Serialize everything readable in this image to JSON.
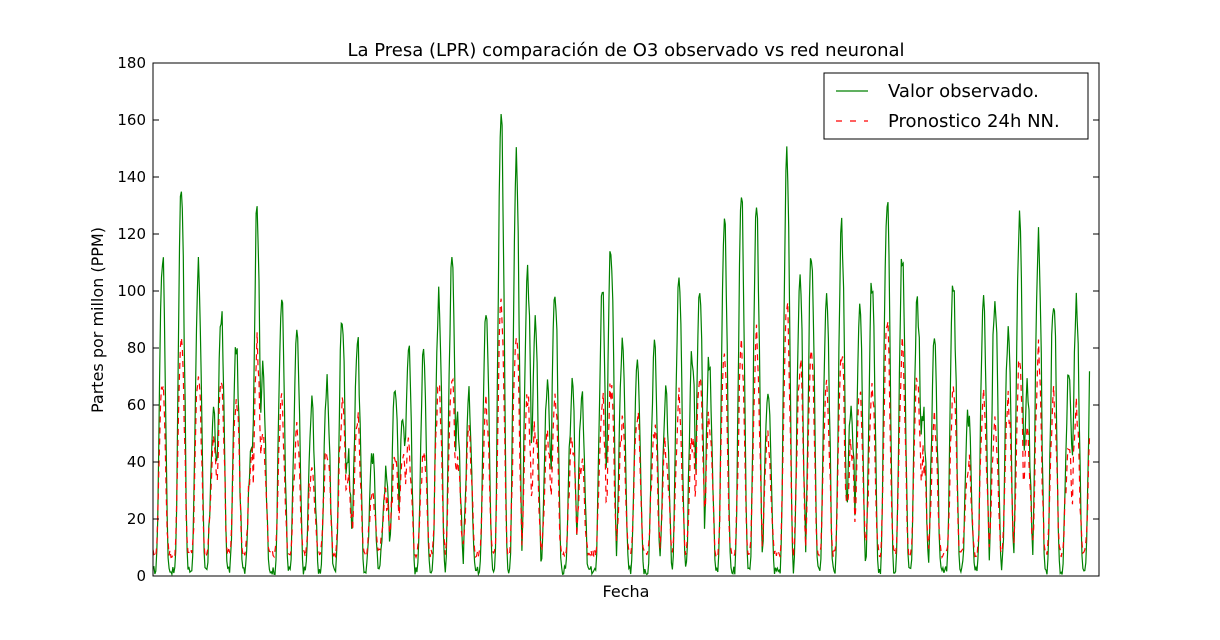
{
  "chart_data": {
    "type": "line",
    "title": "La Presa (LPR) comparación de O3 observado vs red neuronal",
    "xlabel": "Fecha",
    "ylabel": "Partes por millon (PPM)",
    "ylim": [
      0,
      180
    ],
    "yticks": [
      0,
      20,
      40,
      60,
      80,
      100,
      120,
      140,
      160,
      180
    ],
    "xlim": [
      0,
      1000
    ],
    "legend_position": "top-right",
    "grid": false,
    "colors": {
      "observed": "#008000",
      "forecast": "#ff0000"
    },
    "series": [
      {
        "name": "Valor observado.",
        "style": "solid",
        "peak_x": [
          10,
          30,
          48,
          64,
          72,
          88,
          104,
          110,
          116,
          136,
          152,
          168,
          184,
          200,
          206,
          216,
          232,
          246,
          256,
          264,
          270,
          286,
          302,
          316,
          322,
          334,
          352,
          368,
          384,
          396,
          404,
          417,
          425,
          443,
          453,
          475,
          484,
          496,
          512,
          530,
          542,
          556,
          570,
          578,
          588,
          604,
          622,
          638,
          650,
          670,
          684,
          696,
          712,
          728,
          738,
          747,
          760,
          776,
          792,
          808,
          814,
          826,
          846,
          862,
          878,
          890,
          904,
          916,
          924,
          936,
          952,
          968,
          976,
          992
        ],
        "peak_y": [
          113,
          139,
          110,
          58,
          93,
          81,
          48,
          129,
          71,
          97,
          84,
          60,
          66,
          93,
          42,
          83,
          41,
          35,
          67,
          55,
          81,
          77,
          97,
          109,
          53,
          62,
          96,
          163,
          146,
          107,
          88,
          70,
          101,
          65,
          63,
          102,
          115,
          81,
          79,
          80,
          66,
          103,
          79,
          100,
          76,
          125,
          134,
          128,
          68,
          147,
          101,
          115,
          101,
          122,
          60,
          92,
          104,
          134,
          112,
          97,
          58,
          80,
          103,
          57,
          95,
          99,
          83,
          126,
          67,
          119,
          98,
          70,
          95,
          84
        ]
      },
      {
        "name": "Pronostico 24h NN.",
        "style": "dashed",
        "peak_x": [
          10,
          30,
          48,
          64,
          72,
          88,
          104,
          110,
          116,
          136,
          152,
          168,
          184,
          200,
          206,
          216,
          232,
          246,
          256,
          264,
          270,
          286,
          302,
          316,
          322,
          334,
          352,
          368,
          384,
          396,
          404,
          417,
          425,
          443,
          453,
          475,
          484,
          496,
          512,
          530,
          542,
          556,
          570,
          578,
          588,
          604,
          622,
          638,
          650,
          670,
          684,
          696,
          712,
          728,
          738,
          747,
          760,
          776,
          792,
          808,
          814,
          826,
          846,
          862,
          878,
          890,
          904,
          916,
          924,
          936,
          952,
          968,
          976,
          992
        ],
        "peak_y": [
          70,
          86,
          74,
          45,
          70,
          63,
          42,
          81,
          54,
          60,
          50,
          40,
          46,
          60,
          34,
          57,
          30,
          28,
          44,
          40,
          46,
          44,
          70,
          73,
          40,
          48,
          60,
          96,
          87,
          64,
          52,
          48,
          62,
          46,
          40,
          62,
          66,
          53,
          55,
          52,
          46,
          62,
          48,
          72,
          55,
          80,
          79,
          84,
          50,
          98,
          75,
          78,
          66,
          79,
          45,
          63,
          68,
          90,
          80,
          68,
          42,
          55,
          66,
          40,
          63,
          55,
          60,
          78,
          50,
          78,
          63,
          48,
          60,
          56
        ]
      }
    ]
  }
}
